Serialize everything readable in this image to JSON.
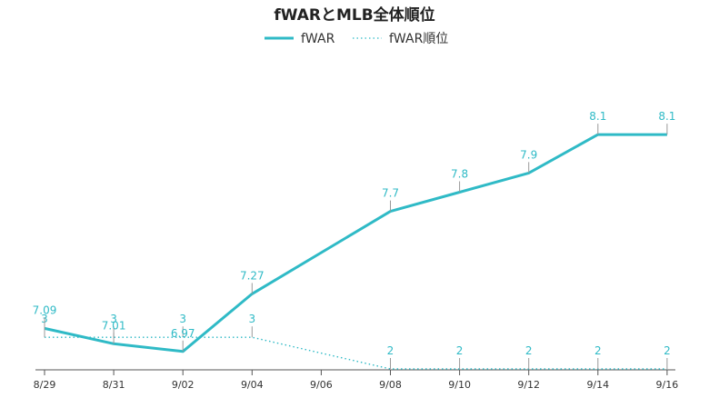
{
  "chart_data": {
    "type": "line",
    "title": "fWARとMLB全体順位",
    "legend_position": "top-center",
    "grid": false,
    "colors": {
      "fwar": "#2fbac6",
      "rank": "#2fbac6",
      "axis": "#555555",
      "text": "#333333"
    },
    "x_ticks": [
      "8/29",
      "8/31",
      "9/02",
      "9/04",
      "9/06",
      "9/08",
      "9/10",
      "9/12",
      "9/14",
      "9/16"
    ],
    "series": [
      {
        "name": "fWAR",
        "style": "solid",
        "x": [
          "8/29",
          "8/31",
          "9/02",
          "9/04",
          "9/08",
          "9/10",
          "9/12",
          "9/14",
          "9/16"
        ],
        "values": [
          7.09,
          7.01,
          6.97,
          7.27,
          7.7,
          7.8,
          7.9,
          8.1,
          8.1
        ],
        "labels": [
          "7.09",
          "7.01",
          "6.97",
          "7.27",
          "7.7",
          "7.8",
          "7.9",
          "8.1",
          "8.1"
        ]
      },
      {
        "name": "fWAR順位",
        "style": "dotted",
        "x": [
          "8/29",
          "8/31",
          "9/02",
          "9/04",
          "9/08",
          "9/10",
          "9/12",
          "9/14",
          "9/16"
        ],
        "values": [
          3,
          3,
          3,
          3,
          2,
          2,
          2,
          2,
          2
        ],
        "labels": [
          "3",
          "3",
          "3",
          "3",
          "2",
          "2",
          "2",
          "2",
          "2"
        ]
      }
    ],
    "y_ranges": {
      "fwar": [
        6.86,
        8.38
      ],
      "rank": [
        2,
        4.3
      ]
    }
  }
}
